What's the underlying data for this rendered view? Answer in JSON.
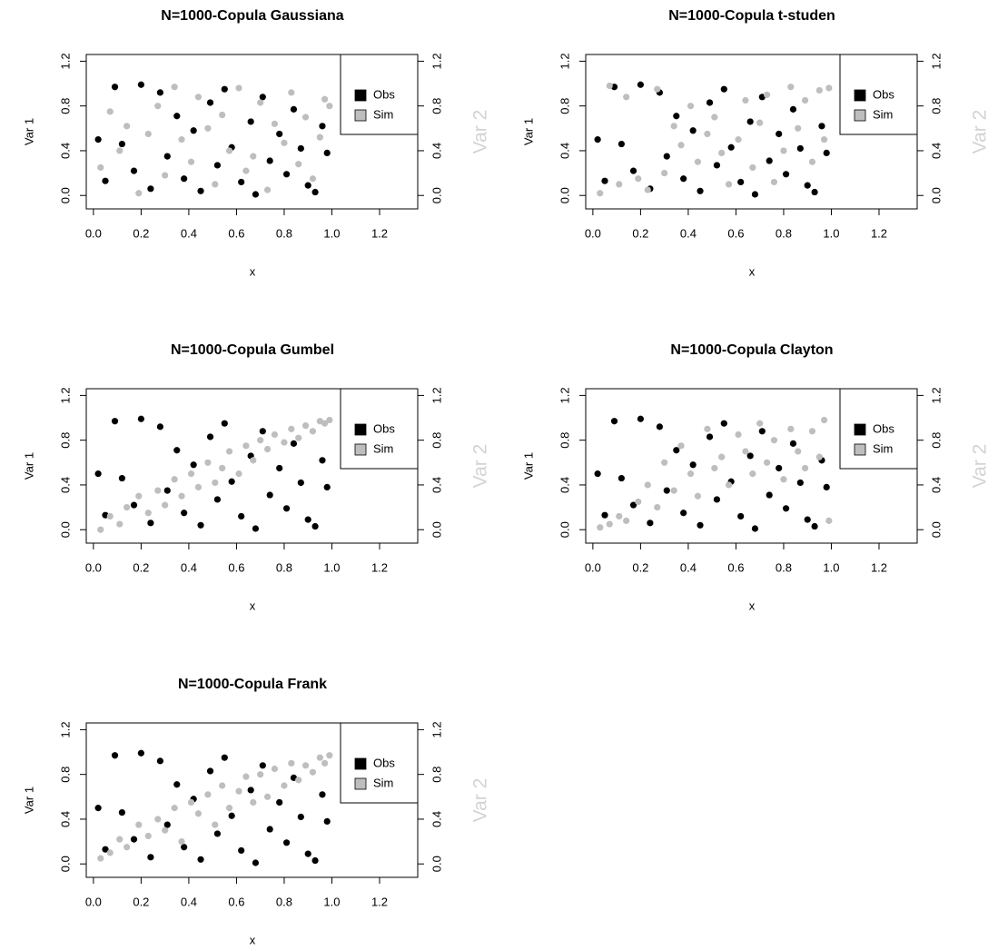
{
  "chart_data": [
    {
      "type": "scatter",
      "title": "N=1000-Copula Gaussiana",
      "x_label": "x",
      "y_label": "Var 1",
      "y2_label": "Var 2",
      "y2_label_color": "#d3d3d3",
      "legend": "topright",
      "xlim": [
        -0.03,
        1.36
      ],
      "ylim": [
        -0.12,
        1.26
      ],
      "y2lim": [
        -0.12,
        1.26
      ],
      "xticks": [
        {
          "value": 0,
          "label": "0.0"
        },
        0.2,
        0.4,
        0.6,
        0.8,
        {
          "value": 1,
          "label": "1.0"
        },
        1.2
      ],
      "yticks": [
        {
          "value": 0,
          "label": "0.0"
        },
        0.4,
        0.8,
        1.2
      ],
      "y2ticks": [
        {
          "value": 0,
          "label": "0.0"
        },
        0.4,
        0.8,
        1.2
      ],
      "series": [
        {
          "name": "Obs",
          "color": "#000000",
          "x": [
            0.02,
            0.05,
            0.09,
            0.12,
            0.17,
            0.2,
            0.24,
            0.28,
            0.31,
            0.35,
            0.38,
            0.42,
            0.45,
            0.49,
            0.52,
            0.55,
            0.58,
            0.62,
            0.66,
            0.68,
            0.71,
            0.74,
            0.78,
            0.81,
            0.84,
            0.87,
            0.9,
            0.93,
            0.96,
            0.98
          ],
          "values": [
            0.5,
            0.13,
            0.97,
            0.46,
            0.22,
            0.99,
            0.06,
            0.92,
            0.35,
            0.71,
            0.15,
            0.58,
            0.04,
            0.83,
            0.27,
            0.95,
            0.43,
            0.12,
            0.66,
            0.01,
            0.88,
            0.31,
            0.55,
            0.19,
            0.77,
            0.42,
            0.09,
            0.03,
            0.62,
            0.38
          ]
        },
        {
          "name": "Sim",
          "color": "#bebebe",
          "axis": "y2",
          "x": [
            0.03,
            0.07,
            0.11,
            0.14,
            0.19,
            0.23,
            0.27,
            0.3,
            0.34,
            0.37,
            0.41,
            0.44,
            0.48,
            0.51,
            0.54,
            0.57,
            0.61,
            0.64,
            0.67,
            0.7,
            0.73,
            0.76,
            0.8,
            0.83,
            0.86,
            0.89,
            0.92,
            0.95,
            0.97,
            0.99
          ],
          "values": [
            0.25,
            0.75,
            0.4,
            0.62,
            0.02,
            0.55,
            0.8,
            0.18,
            0.97,
            0.5,
            0.3,
            0.88,
            0.6,
            0.1,
            0.72,
            0.4,
            0.96,
            0.22,
            0.35,
            0.83,
            0.05,
            0.64,
            0.47,
            0.92,
            0.28,
            0.7,
            0.15,
            0.52,
            0.86,
            0.8
          ]
        }
      ]
    },
    {
      "type": "scatter",
      "title": "N=1000-Copula t-studen",
      "x_label": "x",
      "y_label": "Var 1",
      "y2_label": "Var 2",
      "y2_label_color": "#d3d3d3",
      "legend": "topright",
      "xlim": [
        -0.03,
        1.36
      ],
      "ylim": [
        -0.12,
        1.26
      ],
      "y2lim": [
        -0.12,
        1.26
      ],
      "xticks": [
        {
          "value": 0,
          "label": "0.0"
        },
        0.2,
        0.4,
        0.6,
        0.8,
        {
          "value": 1,
          "label": "1.0"
        },
        1.2
      ],
      "yticks": [
        {
          "value": 0,
          "label": "0.0"
        },
        0.4,
        0.8,
        1.2
      ],
      "y2ticks": [
        {
          "value": 0,
          "label": "0.0"
        },
        0.4,
        0.8,
        1.2
      ],
      "series": [
        {
          "name": "Obs",
          "color": "#000000",
          "x": [
            0.02,
            0.05,
            0.09,
            0.12,
            0.17,
            0.2,
            0.24,
            0.28,
            0.31,
            0.35,
            0.38,
            0.42,
            0.45,
            0.49,
            0.52,
            0.55,
            0.58,
            0.62,
            0.66,
            0.68,
            0.71,
            0.74,
            0.78,
            0.81,
            0.84,
            0.87,
            0.9,
            0.93,
            0.96,
            0.98
          ],
          "values": [
            0.5,
            0.13,
            0.97,
            0.46,
            0.22,
            0.99,
            0.06,
            0.92,
            0.35,
            0.71,
            0.15,
            0.58,
            0.04,
            0.83,
            0.27,
            0.95,
            0.43,
            0.12,
            0.66,
            0.01,
            0.88,
            0.31,
            0.55,
            0.19,
            0.77,
            0.42,
            0.09,
            0.03,
            0.62,
            0.38
          ]
        },
        {
          "name": "Sim",
          "color": "#bebebe",
          "axis": "y2",
          "x": [
            0.03,
            0.07,
            0.11,
            0.14,
            0.19,
            0.23,
            0.27,
            0.3,
            0.34,
            0.37,
            0.41,
            0.44,
            0.48,
            0.51,
            0.54,
            0.57,
            0.61,
            0.64,
            0.67,
            0.7,
            0.73,
            0.76,
            0.8,
            0.83,
            0.86,
            0.89,
            0.92,
            0.95,
            0.97,
            0.99
          ],
          "values": [
            0.02,
            0.98,
            0.1,
            0.88,
            0.15,
            0.05,
            0.95,
            0.2,
            0.62,
            0.45,
            0.8,
            0.3,
            0.55,
            0.7,
            0.38,
            0.1,
            0.5,
            0.85,
            0.25,
            0.65,
            0.9,
            0.12,
            0.4,
            0.97,
            0.6,
            0.85,
            0.3,
            0.94,
            0.5,
            0.96
          ]
        }
      ]
    },
    {
      "type": "scatter",
      "title": "N=1000-Copula Gumbel",
      "x_label": "x",
      "y_label": "Var 1",
      "y2_label": "Var 2",
      "y2_label_color": "#d3d3d3",
      "legend": "topright",
      "xlim": [
        -0.03,
        1.36
      ],
      "ylim": [
        -0.12,
        1.26
      ],
      "y2lim": [
        -0.12,
        1.26
      ],
      "xticks": [
        {
          "value": 0,
          "label": "0.0"
        },
        0.2,
        0.4,
        0.6,
        0.8,
        {
          "value": 1,
          "label": "1.0"
        },
        1.2
      ],
      "yticks": [
        {
          "value": 0,
          "label": "0.0"
        },
        0.4,
        0.8,
        1.2
      ],
      "y2ticks": [
        {
          "value": 0,
          "label": "0.0"
        },
        0.4,
        0.8,
        1.2
      ],
      "series": [
        {
          "name": "Obs",
          "color": "#000000",
          "x": [
            0.02,
            0.05,
            0.09,
            0.12,
            0.17,
            0.2,
            0.24,
            0.28,
            0.31,
            0.35,
            0.38,
            0.42,
            0.45,
            0.49,
            0.52,
            0.55,
            0.58,
            0.62,
            0.66,
            0.68,
            0.71,
            0.74,
            0.78,
            0.81,
            0.84,
            0.87,
            0.9,
            0.93,
            0.96,
            0.98
          ],
          "values": [
            0.5,
            0.13,
            0.97,
            0.46,
            0.22,
            0.99,
            0.06,
            0.92,
            0.35,
            0.71,
            0.15,
            0.58,
            0.04,
            0.83,
            0.27,
            0.95,
            0.43,
            0.12,
            0.66,
            0.01,
            0.88,
            0.31,
            0.55,
            0.19,
            0.77,
            0.42,
            0.09,
            0.03,
            0.62,
            0.38
          ]
        },
        {
          "name": "Sim",
          "color": "#bebebe",
          "axis": "y2",
          "x": [
            0.03,
            0.07,
            0.11,
            0.14,
            0.19,
            0.23,
            0.27,
            0.3,
            0.34,
            0.37,
            0.41,
            0.44,
            0.48,
            0.51,
            0.54,
            0.57,
            0.61,
            0.64,
            0.67,
            0.7,
            0.73,
            0.76,
            0.8,
            0.83,
            0.86,
            0.89,
            0.92,
            0.95,
            0.97,
            0.99
          ],
          "values": [
            0.0,
            0.12,
            0.05,
            0.2,
            0.3,
            0.15,
            0.35,
            0.22,
            0.45,
            0.3,
            0.5,
            0.38,
            0.6,
            0.42,
            0.55,
            0.7,
            0.5,
            0.75,
            0.62,
            0.8,
            0.72,
            0.85,
            0.78,
            0.9,
            0.82,
            0.93,
            0.88,
            0.97,
            0.95,
            0.98
          ]
        }
      ]
    },
    {
      "type": "scatter",
      "title": "N=1000-Copula Clayton",
      "x_label": "x",
      "y_label": "Var 1",
      "y2_label": "Var 2",
      "y2_label_color": "#d3d3d3",
      "legend": "topright",
      "xlim": [
        -0.03,
        1.36
      ],
      "ylim": [
        -0.12,
        1.26
      ],
      "y2lim": [
        -0.12,
        1.26
      ],
      "xticks": [
        {
          "value": 0,
          "label": "0.0"
        },
        0.2,
        0.4,
        0.6,
        0.8,
        {
          "value": 1,
          "label": "1.0"
        },
        1.2
      ],
      "yticks": [
        {
          "value": 0,
          "label": "0.0"
        },
        0.4,
        0.8,
        1.2
      ],
      "y2ticks": [
        {
          "value": 0,
          "label": "0.0"
        },
        0.4,
        0.8,
        1.2
      ],
      "series": [
        {
          "name": "Obs",
          "color": "#000000",
          "x": [
            0.02,
            0.05,
            0.09,
            0.12,
            0.17,
            0.2,
            0.24,
            0.28,
            0.31,
            0.35,
            0.38,
            0.42,
            0.45,
            0.49,
            0.52,
            0.55,
            0.58,
            0.62,
            0.66,
            0.68,
            0.71,
            0.74,
            0.78,
            0.81,
            0.84,
            0.87,
            0.9,
            0.93,
            0.96,
            0.98
          ],
          "values": [
            0.5,
            0.13,
            0.97,
            0.46,
            0.22,
            0.99,
            0.06,
            0.92,
            0.35,
            0.71,
            0.15,
            0.58,
            0.04,
            0.83,
            0.27,
            0.95,
            0.43,
            0.12,
            0.66,
            0.01,
            0.88,
            0.31,
            0.55,
            0.19,
            0.77,
            0.42,
            0.09,
            0.03,
            0.62,
            0.38
          ]
        },
        {
          "name": "Sim",
          "color": "#bebebe",
          "axis": "y2",
          "x": [
            0.03,
            0.07,
            0.11,
            0.14,
            0.19,
            0.23,
            0.27,
            0.3,
            0.34,
            0.37,
            0.41,
            0.44,
            0.48,
            0.51,
            0.54,
            0.57,
            0.61,
            0.64,
            0.67,
            0.7,
            0.73,
            0.76,
            0.8,
            0.83,
            0.86,
            0.89,
            0.92,
            0.95,
            0.97,
            0.99
          ],
          "values": [
            0.02,
            0.05,
            0.12,
            0.08,
            0.25,
            0.4,
            0.2,
            0.6,
            0.35,
            0.75,
            0.5,
            0.3,
            0.9,
            0.55,
            0.65,
            0.4,
            0.85,
            0.7,
            0.5,
            0.95,
            0.6,
            0.8,
            0.45,
            0.9,
            0.7,
            0.55,
            0.88,
            0.65,
            0.98,
            0.08
          ]
        }
      ]
    },
    {
      "type": "scatter",
      "title": "N=1000-Copula Frank",
      "x_label": "x",
      "y_label": "Var 1",
      "y2_label": "Var 2",
      "y2_label_color": "#d3d3d3",
      "legend": "topright",
      "xlim": [
        -0.03,
        1.36
      ],
      "ylim": [
        -0.12,
        1.26
      ],
      "y2lim": [
        -0.12,
        1.26
      ],
      "xticks": [
        {
          "value": 0,
          "label": "0.0"
        },
        0.2,
        0.4,
        0.6,
        0.8,
        {
          "value": 1,
          "label": "1.0"
        },
        1.2
      ],
      "yticks": [
        {
          "value": 0,
          "label": "0.0"
        },
        0.4,
        0.8,
        1.2
      ],
      "y2ticks": [
        {
          "value": 0,
          "label": "0.0"
        },
        0.4,
        0.8,
        1.2
      ],
      "series": [
        {
          "name": "Obs",
          "color": "#000000",
          "x": [
            0.02,
            0.05,
            0.09,
            0.12,
            0.17,
            0.2,
            0.24,
            0.28,
            0.31,
            0.35,
            0.38,
            0.42,
            0.45,
            0.49,
            0.52,
            0.55,
            0.58,
            0.62,
            0.66,
            0.68,
            0.71,
            0.74,
            0.78,
            0.81,
            0.84,
            0.87,
            0.9,
            0.93,
            0.96,
            0.98
          ],
          "values": [
            0.5,
            0.13,
            0.97,
            0.46,
            0.22,
            0.99,
            0.06,
            0.92,
            0.35,
            0.71,
            0.15,
            0.58,
            0.04,
            0.83,
            0.27,
            0.95,
            0.43,
            0.12,
            0.66,
            0.01,
            0.88,
            0.31,
            0.55,
            0.19,
            0.77,
            0.42,
            0.09,
            0.03,
            0.62,
            0.38
          ]
        },
        {
          "name": "Sim",
          "color": "#bebebe",
          "axis": "y2",
          "x": [
            0.03,
            0.07,
            0.11,
            0.14,
            0.19,
            0.23,
            0.27,
            0.3,
            0.34,
            0.37,
            0.41,
            0.44,
            0.48,
            0.51,
            0.54,
            0.57,
            0.61,
            0.64,
            0.67,
            0.7,
            0.73,
            0.76,
            0.8,
            0.83,
            0.86,
            0.89,
            0.92,
            0.95,
            0.97,
            0.99
          ],
          "values": [
            0.05,
            0.1,
            0.22,
            0.15,
            0.35,
            0.25,
            0.4,
            0.3,
            0.5,
            0.2,
            0.55,
            0.45,
            0.62,
            0.35,
            0.7,
            0.5,
            0.65,
            0.78,
            0.55,
            0.8,
            0.6,
            0.85,
            0.7,
            0.9,
            0.75,
            0.88,
            0.82,
            0.95,
            0.9,
            0.97
          ]
        }
      ]
    }
  ]
}
